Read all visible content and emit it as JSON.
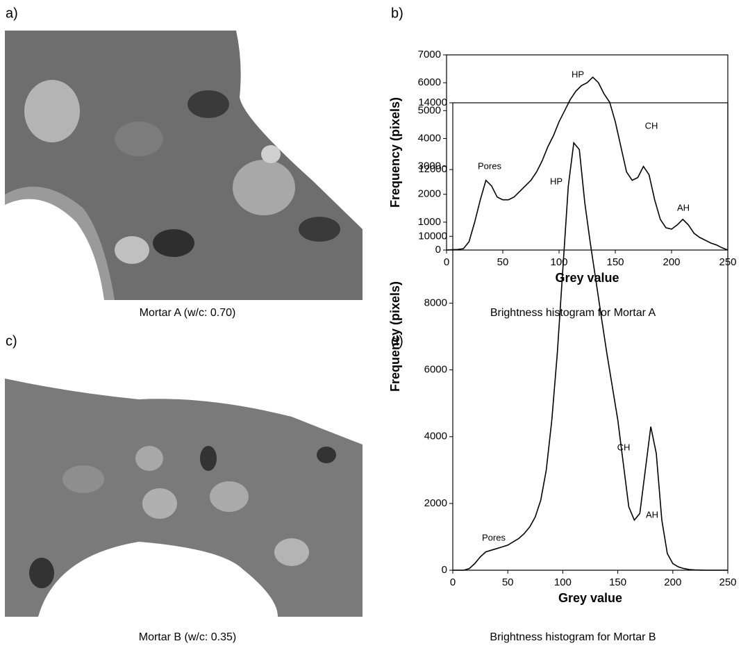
{
  "panels": [
    {
      "label": "a)",
      "caption": "Mortar A (w/c: 0.70)"
    },
    {
      "label": "b)",
      "caption": "Brightness histogram for Mortar A"
    },
    {
      "label": "c)",
      "caption": "Mortar B (w/c: 0.35)"
    },
    {
      "label": "d)",
      "caption": "Brightness histogram for Mortar B"
    }
  ],
  "chart_data": [
    {
      "type": "line",
      "x_label": "Grey value",
      "y_label": "Frequency (pixels)",
      "color": "#000000",
      "xlim": [
        0,
        250
      ],
      "xticks": [
        0,
        50,
        100,
        150,
        200,
        250
      ],
      "ylim": [
        0,
        7000
      ],
      "yticks": [
        0,
        1000,
        2000,
        3000,
        4000,
        5000,
        6000,
        7000
      ],
      "annotations": [
        "Pores",
        "HP",
        "CH",
        "AH"
      ],
      "x": [
        0,
        5,
        10,
        15,
        20,
        25,
        30,
        35,
        40,
        45,
        50,
        55,
        60,
        65,
        70,
        75,
        80,
        85,
        90,
        95,
        100,
        105,
        110,
        115,
        120,
        125,
        130,
        135,
        140,
        145,
        150,
        155,
        160,
        165,
        170,
        175,
        180,
        185,
        190,
        195,
        200,
        205,
        210,
        215,
        220,
        225,
        230,
        235,
        240,
        245,
        250
      ],
      "values": [
        0,
        10,
        20,
        50,
        300,
        1000,
        1800,
        2500,
        2300,
        1900,
        1800,
        1800,
        1900,
        2100,
        2300,
        2500,
        2800,
        3200,
        3700,
        4100,
        4600,
        5000,
        5400,
        5700,
        5900,
        6000,
        6200,
        6000,
        5600,
        5300,
        4600,
        3700,
        2800,
        2500,
        2600,
        3000,
        2700,
        1800,
        1100,
        800,
        750,
        900,
        1100,
        900,
        600,
        450,
        350,
        250,
        180,
        80,
        0
      ]
    },
    {
      "type": "line",
      "x_label": "Grey value",
      "y_label": "Frequency (pixels)",
      "color": "#000000",
      "xlim": [
        0,
        250
      ],
      "xticks": [
        0,
        50,
        100,
        150,
        200,
        250
      ],
      "ylim": [
        0,
        14000
      ],
      "yticks": [
        0,
        2000,
        4000,
        6000,
        8000,
        10000,
        12000,
        14000
      ],
      "annotations": [
        "Pores",
        "HP",
        "CH",
        "AH"
      ],
      "x": [
        0,
        5,
        10,
        15,
        20,
        25,
        30,
        35,
        40,
        45,
        50,
        55,
        60,
        65,
        70,
        75,
        80,
        85,
        90,
        95,
        100,
        105,
        110,
        115,
        120,
        125,
        130,
        135,
        140,
        145,
        150,
        155,
        160,
        165,
        170,
        175,
        180,
        185,
        190,
        195,
        200,
        205,
        210,
        215,
        220,
        225,
        230,
        235,
        240,
        245,
        250
      ],
      "values": [
        0,
        0,
        0,
        50,
        200,
        400,
        550,
        600,
        650,
        700,
        750,
        850,
        950,
        1100,
        1300,
        1600,
        2100,
        3000,
        4500,
        6500,
        9000,
        11500,
        12800,
        12600,
        11000,
        9800,
        8700,
        7600,
        6500,
        5500,
        4500,
        3200,
        1900,
        1500,
        1700,
        3000,
        4300,
        3500,
        1500,
        500,
        200,
        100,
        50,
        20,
        10,
        5,
        0,
        0,
        0,
        0,
        0
      ]
    }
  ]
}
